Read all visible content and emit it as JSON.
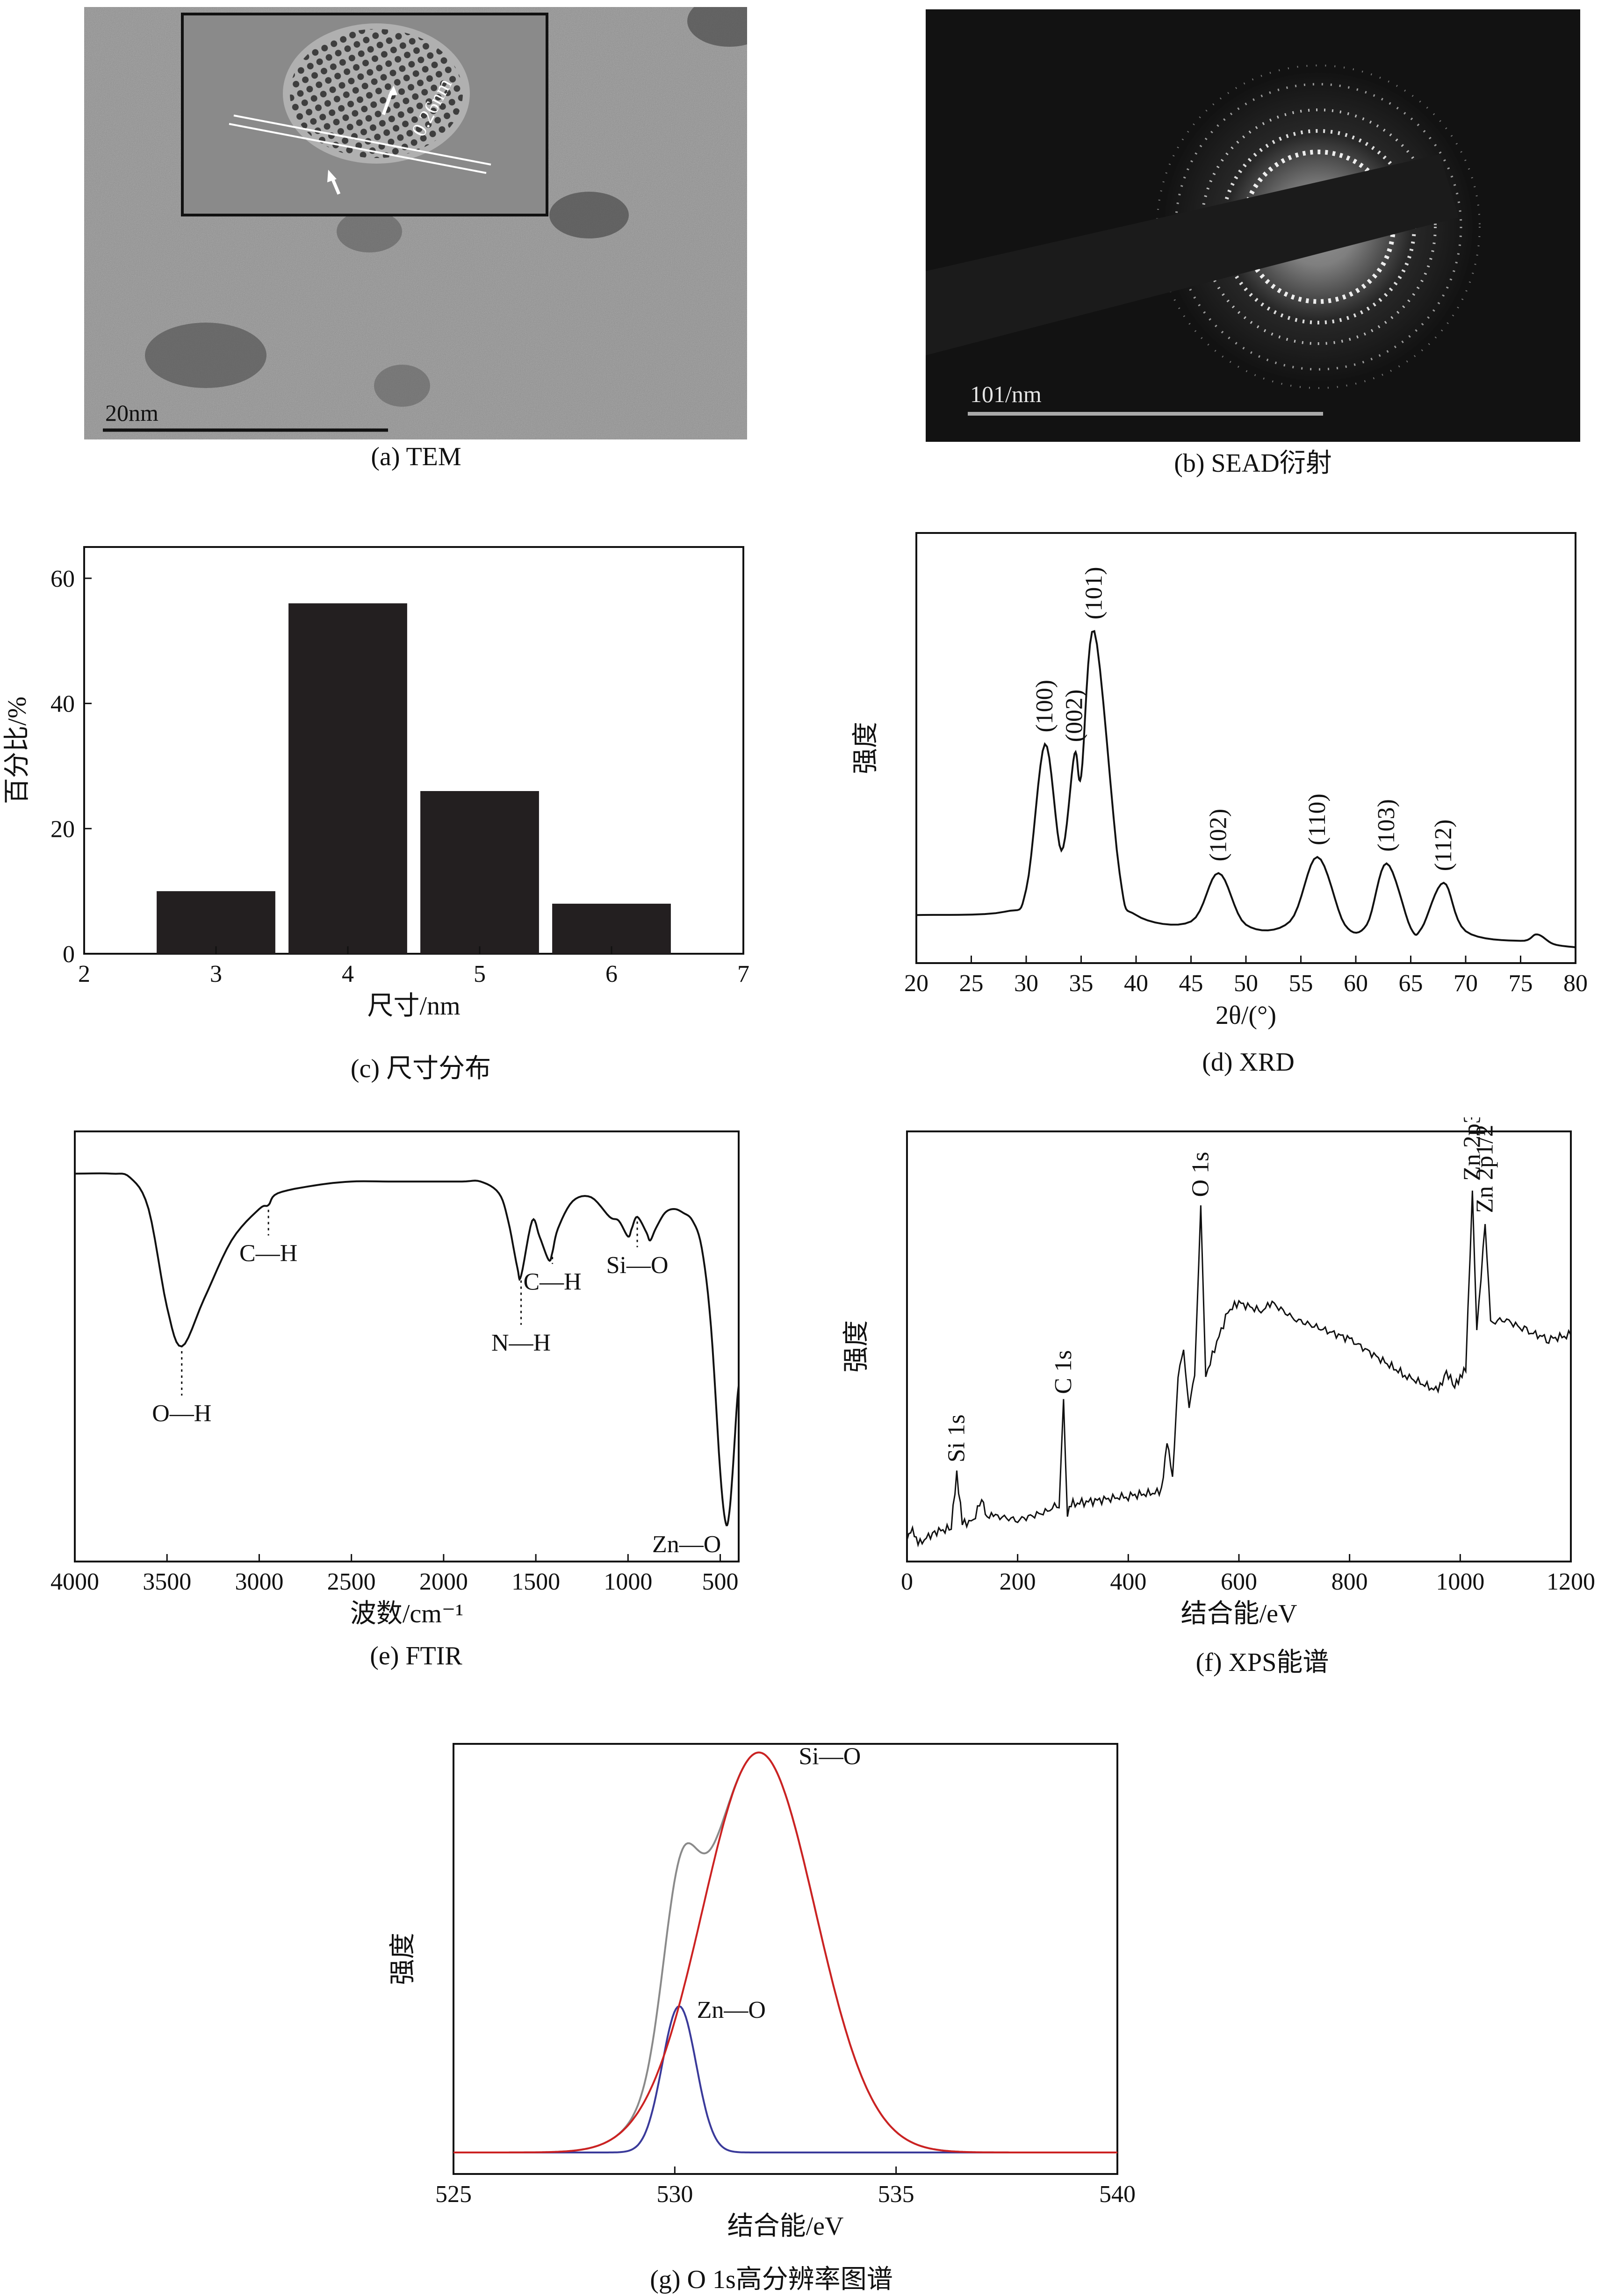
{
  "panels": {
    "a": {
      "caption": "(a) TEM",
      "scale_label": "20nm",
      "lattice_label": "0.26nm"
    },
    "b": {
      "caption": "(b) SEAD衍射",
      "scale_label": "101/nm"
    },
    "c": {
      "caption": "(c) 尺寸分布"
    },
    "d": {
      "caption": "(d) XRD"
    },
    "e": {
      "caption": "(e) FTIR"
    },
    "f": {
      "caption": "(f) XPS能谱"
    },
    "g": {
      "caption": "(g) O 1s高分辨率图谱"
    }
  },
  "chart_data": [
    {
      "id": "c",
      "type": "bar",
      "title": "",
      "xlabel": "尺寸/nm",
      "ylabel": "百分比/%",
      "categories": [
        3,
        4,
        5,
        6
      ],
      "values": [
        10,
        56,
        26,
        8
      ],
      "xlim": [
        2,
        7
      ],
      "ylim": [
        0,
        65
      ],
      "xticks": [
        2,
        3,
        4,
        5,
        6,
        7
      ],
      "yticks": [
        0,
        20,
        40,
        60
      ],
      "colors": {
        "bar": "#231f20"
      },
      "grid": false
    },
    {
      "id": "d",
      "type": "line",
      "xlabel": "2θ/(°)",
      "ylabel": "强度",
      "xlim": [
        20,
        80
      ],
      "xticks": [
        20,
        25,
        30,
        35,
        40,
        45,
        50,
        55,
        60,
        65,
        70,
        75,
        80
      ],
      "yticks_shown": false,
      "baseline": 0.07,
      "series": [
        {
          "x": [
            20,
            28,
            30,
            31.7,
            33.2,
            34.4,
            35.0,
            36.2,
            38.5,
            40,
            45,
            47.5,
            50,
            54,
            56.5,
            59,
            61,
            62.8,
            65,
            66,
            68,
            70,
            75,
            76.5,
            78,
            80
          ],
          "y": [
            0.12,
            0.13,
            0.2,
            0.65,
            0.32,
            0.62,
            0.55,
            1.0,
            0.25,
            0.12,
            0.1,
            0.25,
            0.09,
            0.1,
            0.3,
            0.09,
            0.09,
            0.28,
            0.08,
            0.08,
            0.22,
            0.07,
            0.04,
            0.06,
            0.03,
            0.02
          ]
        }
      ],
      "annotations": [
        {
          "label": "(100)",
          "x": 31.7
        },
        {
          "label": "(002)",
          "x": 34.4
        },
        {
          "label": "(101)",
          "x": 36.2
        },
        {
          "label": "(102)",
          "x": 47.5
        },
        {
          "label": "(110)",
          "x": 56.5
        },
        {
          "label": "(103)",
          "x": 62.8
        },
        {
          "label": "(112)",
          "x": 68
        }
      ],
      "grid": false
    },
    {
      "id": "e",
      "type": "line",
      "xlabel": "波数/cm⁻¹",
      "ylabel": "",
      "xlim": [
        4000,
        400
      ],
      "xticks": [
        4000,
        3500,
        3000,
        2500,
        2000,
        1500,
        1000,
        500
      ],
      "yticks_shown": false,
      "series": [
        {
          "x": [
            4000,
            3800,
            3700,
            3600,
            3500,
            3420,
            3300,
            3150,
            3000,
            2950,
            2900,
            2700,
            2500,
            2300,
            2100,
            1900,
            1800,
            1700,
            1650,
            1600,
            1580,
            1520,
            1480,
            1430,
            1410,
            1380,
            1300,
            1200,
            1100,
            1050,
            1000,
            980,
            950,
            900,
            880,
            850,
            800,
            750,
            700,
            650,
            600,
            550,
            500,
            470,
            450,
            430,
            410,
            400
          ],
          "y": [
            0.94,
            0.94,
            0.93,
            0.85,
            0.6,
            0.5,
            0.62,
            0.77,
            0.85,
            0.86,
            0.89,
            0.91,
            0.92,
            0.92,
            0.92,
            0.92,
            0.92,
            0.89,
            0.82,
            0.7,
            0.68,
            0.82,
            0.78,
            0.72,
            0.74,
            0.8,
            0.87,
            0.88,
            0.83,
            0.82,
            0.78,
            0.8,
            0.83,
            0.79,
            0.77,
            0.8,
            0.84,
            0.85,
            0.84,
            0.82,
            0.75,
            0.55,
            0.18,
            0.05,
            0.08,
            0.2,
            0.35,
            0.4
          ]
        }
      ],
      "annotations": [
        {
          "label": "O—H",
          "x": 3420
        },
        {
          "label": "C—H",
          "x": 2950
        },
        {
          "label": "N—H",
          "x": 1580
        },
        {
          "label": "C—H",
          "x": 1410
        },
        {
          "label": "Si—O",
          "x": 950
        },
        {
          "label": "Zn—O",
          "x": 470
        }
      ],
      "grid": false
    },
    {
      "id": "f",
      "type": "line",
      "xlabel": "结合能/eV",
      "ylabel": "强度",
      "xlim": [
        0,
        1200
      ],
      "xticks": [
        0,
        200,
        400,
        600,
        800,
        1000,
        1200
      ],
      "yticks_shown": false,
      "series": [
        {
          "x": [
            0,
            10,
            20,
            50,
            80,
            90,
            100,
            120,
            135,
            145,
            160,
            200,
            250,
            275,
            283,
            290,
            300,
            400,
            460,
            470,
            480,
            490,
            500,
            510,
            520,
            531,
            540,
            560,
            580,
            600,
            640,
            660,
            700,
            800,
            900,
            960,
            975,
            990,
            1000,
            1010,
            1022,
            1030,
            1045,
            1055,
            1080,
            1120,
            1160,
            1200
          ],
          "y": [
            0.03,
            0.06,
            0.02,
            0.05,
            0.06,
            0.2,
            0.07,
            0.08,
            0.13,
            0.09,
            0.09,
            0.08,
            0.1,
            0.12,
            0.37,
            0.1,
            0.12,
            0.14,
            0.15,
            0.28,
            0.18,
            0.44,
            0.5,
            0.36,
            0.44,
            0.86,
            0.44,
            0.52,
            0.6,
            0.62,
            0.6,
            0.62,
            0.58,
            0.53,
            0.44,
            0.4,
            0.45,
            0.41,
            0.44,
            0.45,
            0.9,
            0.55,
            0.82,
            0.57,
            0.58,
            0.55,
            0.53,
            0.54
          ]
        }
      ],
      "annotations": [
        {
          "label": "Si 1s",
          "x": 90
        },
        {
          "label": "C 1s",
          "x": 283
        },
        {
          "label": "O 1s",
          "x": 531
        },
        {
          "label": "Zn 2p3/2",
          "x": 1022
        },
        {
          "label": "Zn 2p1/2",
          "x": 1045
        }
      ],
      "grid": false
    },
    {
      "id": "g",
      "type": "line",
      "xlabel": "结合能/eV",
      "ylabel": "强度",
      "xlim": [
        525,
        540
      ],
      "xticks": [
        525,
        530,
        535,
        540
      ],
      "yticks_shown": false,
      "components": [
        {
          "name": "Zn—O",
          "center": 530.1,
          "fwhm": 0.9,
          "height": 0.34,
          "color": "#3a3a9a"
        },
        {
          "name": "Si—O",
          "center": 531.9,
          "fwhm": 3.0,
          "height": 0.93,
          "color": "#cc2222"
        }
      ],
      "envelope_color": "#8a8a8a",
      "baseline": 0.05,
      "annotations": [
        {
          "label": "Si—O",
          "x": 532.8
        },
        {
          "label": "Zn—O",
          "x": 530.5
        }
      ],
      "grid": false
    }
  ],
  "colors": {
    "axis": "#111111",
    "line": "#111111",
    "tem_bg": "#8c8c8c",
    "sead_bg": "#121212"
  }
}
